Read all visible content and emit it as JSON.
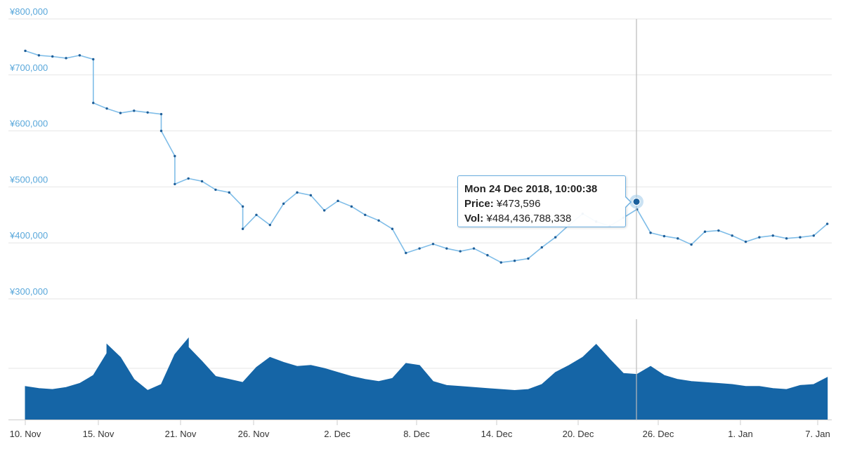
{
  "chart_data": [
    {
      "type": "line",
      "title": "",
      "xlabel": "",
      "ylabel": "",
      "y_ticks": [
        "¥800,000",
        "¥700,000",
        "¥600,000",
        "¥500,000",
        "¥400,000",
        "¥300,000"
      ],
      "ylim": [
        300000,
        800000
      ],
      "x_ticks": [
        "10. Nov",
        "15. Nov",
        "21. Nov",
        "26. Nov",
        "2. Dec",
        "8. Dec",
        "14. Dec",
        "20. Dec",
        "26. Dec",
        "1. Jan",
        "7. Jan"
      ],
      "grid": true,
      "series": [
        {
          "color": "#2b7bc0",
          "x": [
            "2018-11-10",
            "2018-11-11",
            "2018-11-12",
            "2018-11-13",
            "2018-11-14",
            "2018-11-15",
            "2018-11-15",
            "2018-11-16",
            "2018-11-17",
            "2018-11-18",
            "2018-11-19",
            "2018-11-20",
            "2018-11-20",
            "2018-11-21",
            "2018-11-21",
            "2018-11-22",
            "2018-11-23",
            "2018-11-24",
            "2018-11-25",
            "2018-11-26",
            "2018-11-26",
            "2018-11-27",
            "2018-11-28",
            "2018-11-29",
            "2018-11-30",
            "2018-12-01",
            "2018-12-02",
            "2018-12-03",
            "2018-12-04",
            "2018-12-05",
            "2018-12-06",
            "2018-12-07",
            "2018-12-08",
            "2018-12-09",
            "2018-12-10",
            "2018-12-11",
            "2018-12-12",
            "2018-12-13",
            "2018-12-14",
            "2018-12-15",
            "2018-12-16",
            "2018-12-17",
            "2018-12-18",
            "2018-12-19",
            "2018-12-20",
            "2018-12-21",
            "2018-12-22",
            "2018-12-23",
            "2018-12-24",
            "2018-12-25",
            "2018-12-26",
            "2018-12-27",
            "2018-12-28",
            "2018-12-29",
            "2018-12-30",
            "2018-12-31",
            "2019-01-01",
            "2019-01-02",
            "2019-01-03",
            "2019-01-04",
            "2019-01-05",
            "2019-01-06",
            "2019-01-07",
            "2019-01-08"
          ],
          "values": [
            743000,
            735000,
            733000,
            730000,
            735000,
            728000,
            650000,
            640000,
            632000,
            636000,
            633000,
            630000,
            600000,
            555000,
            505000,
            515000,
            510000,
            495000,
            490000,
            465000,
            425000,
            450000,
            432000,
            470000,
            490000,
            485000,
            458000,
            475000,
            465000,
            450000,
            440000,
            425000,
            382000,
            390000,
            398000,
            390000,
            385000,
            390000,
            378000,
            365000,
            368000,
            372000,
            392000,
            410000,
            432000,
            452000,
            438000,
            430000,
            445000,
            460000,
            418000,
            412000,
            408000,
            397000,
            420000,
            422000,
            413000,
            402000,
            410000,
            413000,
            408000,
            410000,
            413000,
            434000
          ]
        }
      ],
      "tooltip": {
        "date": "Mon 24 Dec 2018, 10:00:38",
        "price_label": "Price:",
        "price_value": "¥473,596",
        "vol_label": "Vol:",
        "vol_value": "¥484,436,788,338",
        "point_x": "2018-12-24",
        "point_y": 473596
      }
    },
    {
      "type": "area",
      "title": "",
      "series": [
        {
          "color": "#1565a6",
          "x": [
            "2018-11-10",
            "2018-11-11",
            "2018-11-12",
            "2018-11-13",
            "2018-11-14",
            "2018-11-15",
            "2018-11-16",
            "2018-11-16",
            "2018-11-17",
            "2018-11-18",
            "2018-11-19",
            "2018-11-20",
            "2018-11-21",
            "2018-11-22",
            "2018-11-22",
            "2018-11-23",
            "2018-11-24",
            "2018-11-25",
            "2018-11-26",
            "2018-11-27",
            "2018-11-28",
            "2018-11-29",
            "2018-11-30",
            "2018-12-01",
            "2018-12-02",
            "2018-12-03",
            "2018-12-04",
            "2018-12-05",
            "2018-12-06",
            "2018-12-07",
            "2018-12-08",
            "2018-12-09",
            "2018-12-10",
            "2018-12-11",
            "2018-12-12",
            "2018-12-13",
            "2018-12-14",
            "2018-12-15",
            "2018-12-16",
            "2018-12-17",
            "2018-12-18",
            "2018-12-19",
            "2018-12-20",
            "2018-12-21",
            "2018-12-22",
            "2018-12-23",
            "2018-12-24",
            "2018-12-25",
            "2018-12-26",
            "2018-12-27",
            "2018-12-28",
            "2018-12-29",
            "2018-12-30",
            "2018-12-31",
            "2019-01-01",
            "2019-01-02",
            "2019-01-03",
            "2019-01-04",
            "2019-01-05",
            "2019-01-06",
            "2019-01-07",
            "2019-01-08"
          ],
          "values": [
            0.33,
            0.31,
            0.3,
            0.32,
            0.36,
            0.44,
            0.66,
            0.75,
            0.62,
            0.4,
            0.29,
            0.35,
            0.65,
            0.81,
            0.72,
            0.58,
            0.43,
            0.4,
            0.37,
            0.52,
            0.62,
            0.57,
            0.53,
            0.54,
            0.51,
            0.47,
            0.43,
            0.4,
            0.38,
            0.41,
            0.56,
            0.54,
            0.38,
            0.34,
            0.33,
            0.32,
            0.31,
            0.3,
            0.29,
            0.3,
            0.35,
            0.47,
            0.54,
            0.62,
            0.75,
            0.6,
            0.46,
            0.45,
            0.53,
            0.44,
            0.4,
            0.38,
            0.37,
            0.36,
            0.35,
            0.33,
            0.33,
            0.31,
            0.3,
            0.34,
            0.35,
            0.42
          ]
        }
      ]
    }
  ]
}
